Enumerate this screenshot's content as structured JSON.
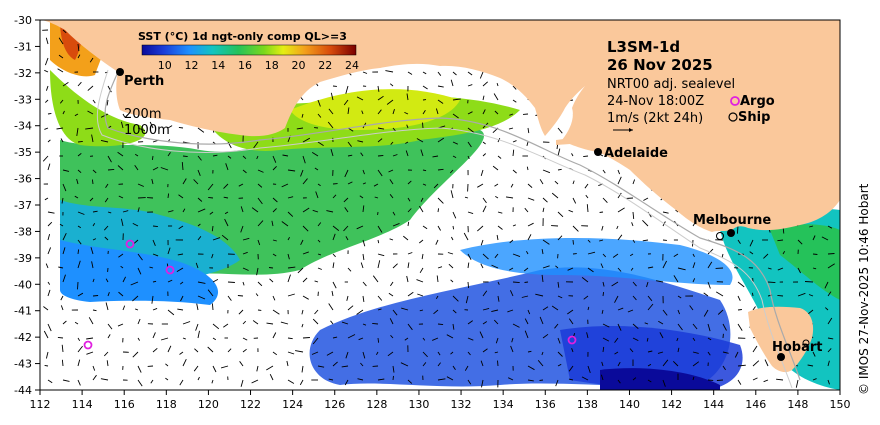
{
  "map": {
    "title": "L3SM-1d",
    "date": "26 Nov 2025",
    "product": "NRT00 adj. sealevel",
    "time": "24-Nov 18:00Z",
    "argo_label": "Argo",
    "ship_label": "Ship",
    "arrow_scale": "1m/s (2kt 24h)",
    "contour_200": "200m",
    "contour_1000": "1000m",
    "credit": "© IMOS 27-Nov-2025 10:46 Hobart",
    "colorbar": {
      "title": "SST (°C) 1d ngt-only comp QL>=3",
      "ticks": [
        "10",
        "12",
        "14",
        "16",
        "18",
        "20",
        "22",
        "24"
      ]
    },
    "lon_ticks": [
      "112",
      "114",
      "116",
      "118",
      "120",
      "122",
      "124",
      "126",
      "128",
      "130",
      "132",
      "134",
      "136",
      "138",
      "140",
      "142",
      "144",
      "146",
      "148",
      "150"
    ],
    "lat_ticks": [
      "-30",
      "-31",
      "-32",
      "-33",
      "-34",
      "-35",
      "-36",
      "-37",
      "-38",
      "-39",
      "-40",
      "-41",
      "-42",
      "-43",
      "-44"
    ],
    "cities": [
      "Perth",
      "Adelaide",
      "Melbourne",
      "Hobart"
    ],
    "colors": {
      "land": "#FAC89B",
      "argo": "#E020E0"
    }
  }
}
